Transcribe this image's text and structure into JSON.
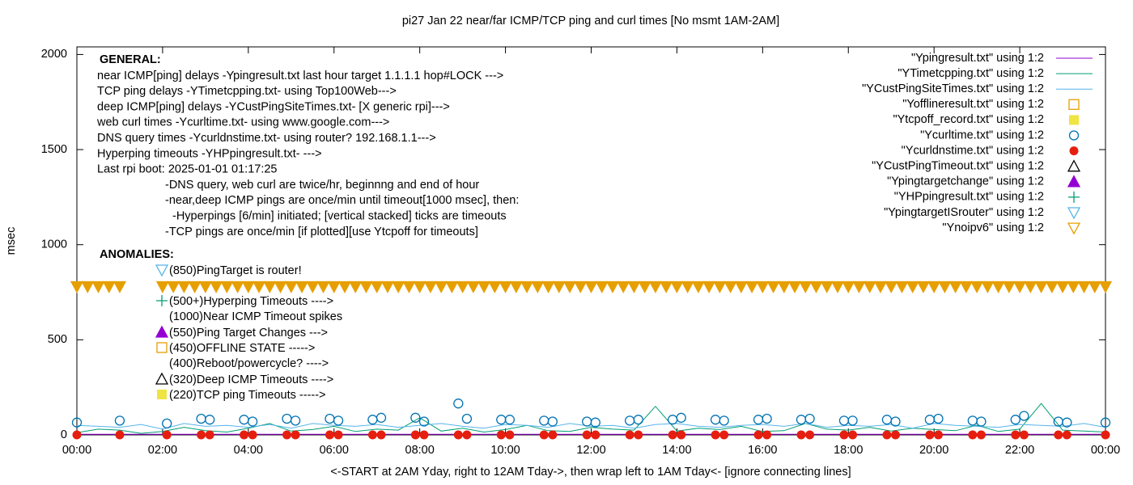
{
  "chart_data": {
    "type": "mixed",
    "title": "pi27 Jan 22  near/far ICMP/TCP ping and curl times [No msmt 1AM-2AM]",
    "x_label": "<-START at 2AM Yday, right to 12AM Tday->, then wrap left to 1AM Tday<- [ignore connecting lines]",
    "y_label": "msec",
    "xlim": [
      0,
      24
    ],
    "xticks": [
      {
        "value": 0,
        "label": "00:00"
      },
      {
        "value": 2,
        "label": "02:00"
      },
      {
        "value": 4,
        "label": "04:00"
      },
      {
        "value": 6,
        "label": "06:00"
      },
      {
        "value": 8,
        "label": "08:00"
      },
      {
        "value": 10,
        "label": "10:00"
      },
      {
        "value": 12,
        "label": "12:00"
      },
      {
        "value": 14,
        "label": "14:00"
      },
      {
        "value": 16,
        "label": "16:00"
      },
      {
        "value": 18,
        "label": "18:00"
      },
      {
        "value": 20,
        "label": "20:00"
      },
      {
        "value": 22,
        "label": "22:00"
      },
      {
        "value": 24,
        "label": "00:00"
      }
    ],
    "ylim": [
      0,
      2040
    ],
    "yticks": [
      0,
      500,
      1000,
      1500,
      2000
    ],
    "grid": false,
    "legend": "top-right",
    "general_heading": "GENERAL:",
    "general": [
      "near ICMP[ping] delays -Ypingresult.txt last hour target 1.1.1.1 hop#LOCK --->",
      "TCP ping delays -YTimetcpping.txt- using Top100Web--->",
      "deep ICMP[ping] delays -YCustPingSiteTimes.txt- [X generic rpi]--->",
      "web curl times -Ycurltime.txt- using www.google.com--->",
      "DNS query times -Ycurldnstime.txt- using router? 192.168.1.1--->",
      "Hyperping timeouts -YHPpingresult.txt- --->",
      "Last rpi boot: 2025-01-01 01:17:25",
      "-DNS query, web curl are twice/hr, beginnng and end of hour",
      "-near,deep ICMP pings are once/min until timeout[1000 msec], then:",
      "-Hyperpings [6/min] initiated; [vertical stacked] ticks are timeouts",
      "-TCP pings are once/min [if plotted][use Ytcpoff for timeouts]"
    ],
    "anomalies_heading": "ANOMALIES:",
    "anomalies": [
      {
        "label": "(850)PingTarget is router!",
        "marker": "triangle-down-open",
        "color": "#56b4e9"
      },
      {
        "label": "(500+)Hyperping Timeouts ---->",
        "marker": "plus",
        "color": "#009e73"
      },
      {
        "label": "(1000)Near ICMP Timeout spikes",
        "marker": "none",
        "color": "#000000"
      },
      {
        "label": "(550)Ping Target Changes --->",
        "marker": "triangle-up-filled",
        "color": "#9400d3"
      },
      {
        "label": "(450)OFFLINE STATE ----->",
        "marker": "square-open",
        "color": "#e69f00"
      },
      {
        "label": "(400)Reboot/powercycle? ---->",
        "marker": "none",
        "color": "#000000"
      },
      {
        "label": "(320)Deep ICMP Timeouts ---->",
        "marker": "triangle-up-open",
        "color": "#000000"
      },
      {
        "label": "(220)TCP ping Timeouts ----->",
        "marker": "square-filled",
        "color": "#f0e442"
      }
    ],
    "series": [
      {
        "name": "\"Ypingresult.txt\" using 1:2",
        "style": "line",
        "color": "#9400d3",
        "x": [
          0,
          2,
          4,
          6,
          8,
          10,
          12,
          14,
          16,
          18,
          20,
          22,
          24
        ],
        "values": [
          3,
          3,
          3,
          3,
          3,
          3,
          3,
          3,
          3,
          3,
          3,
          3,
          3
        ]
      },
      {
        "name": "\"YTimetcpping.txt\" using 1:2",
        "style": "line",
        "color": "#009e73",
        "x": [
          0,
          0.5,
          1,
          1.5,
          2,
          2.5,
          3,
          3.5,
          4,
          4.5,
          5,
          5.5,
          6,
          6.5,
          7,
          7.5,
          8,
          8.5,
          9,
          9.5,
          10,
          10.5,
          11,
          11.5,
          12,
          12.5,
          13,
          13.5,
          14,
          14.5,
          15,
          15.5,
          16,
          16.5,
          17,
          17.5,
          18,
          18.5,
          19,
          19.5,
          20,
          20.5,
          21,
          21.5,
          22,
          22.5,
          23,
          23.5,
          24
        ],
        "values": [
          12,
          30,
          25,
          8,
          18,
          40,
          22,
          15,
          35,
          60,
          20,
          28,
          45,
          18,
          30,
          25,
          90,
          20,
          35,
          15,
          28,
          50,
          22,
          18,
          40,
          30,
          25,
          150,
          20,
          35,
          28,
          45,
          18,
          22,
          60,
          30,
          25,
          40,
          20,
          35,
          28,
          22,
          50,
          18,
          30,
          165,
          25,
          20,
          15
        ]
      },
      {
        "name": "\"YCustPingSiteTimes.txt\" using 1:2",
        "style": "line",
        "color": "#56b4e9",
        "x": [
          0,
          0.5,
          1,
          1.5,
          2,
          2.5,
          3,
          3.5,
          4,
          4.5,
          5,
          5.5,
          6,
          6.5,
          7,
          7.5,
          8,
          8.5,
          9,
          9.5,
          10,
          10.5,
          11,
          11.5,
          12,
          12.5,
          13,
          13.5,
          14,
          14.5,
          15,
          15.5,
          16,
          16.5,
          17,
          17.5,
          18,
          18.5,
          19,
          19.5,
          20,
          20.5,
          21,
          21.5,
          22,
          22.5,
          23,
          23.5,
          24
        ],
        "values": [
          50,
          45,
          40,
          55,
          30,
          60,
          45,
          50,
          40,
          55,
          35,
          60,
          50,
          45,
          55,
          40,
          50,
          60,
          45,
          35,
          55,
          50,
          40,
          60,
          45,
          50,
          35,
          55,
          60,
          45,
          40,
          50,
          55,
          45,
          60,
          40,
          50,
          45,
          55,
          35,
          60,
          50,
          45,
          40,
          55,
          50,
          45,
          60,
          40
        ]
      },
      {
        "name": "\"Yofflineresult.txt\" using 1:2",
        "style": "square-open",
        "color": "#e69f00",
        "x": [],
        "values": []
      },
      {
        "name": "\"Ytcpoff_record.txt\" using 1:2",
        "style": "square-filled",
        "color": "#f0e442",
        "x": [],
        "values": []
      },
      {
        "name": "\"Ycurltime.txt\" using 1:2",
        "style": "circle-open",
        "color": "#0072b2",
        "x": [
          0,
          1,
          2.1,
          2.9,
          3.1,
          3.9,
          4.1,
          4.9,
          5.1,
          5.9,
          6.1,
          6.9,
          7.1,
          7.9,
          8.1,
          8.9,
          9.1,
          9.9,
          10.1,
          10.9,
          11.1,
          11.9,
          12.1,
          12.9,
          13.1,
          13.9,
          14.1,
          14.9,
          15.1,
          15.9,
          16.1,
          16.9,
          17.1,
          17.9,
          18.1,
          18.9,
          19.1,
          19.9,
          20.1,
          20.9,
          21.1,
          21.9,
          22.1,
          22.9,
          23.1,
          24
        ],
        "values": [
          65,
          75,
          60,
          85,
          80,
          80,
          70,
          85,
          75,
          85,
          75,
          80,
          90,
          90,
          70,
          165,
          85,
          80,
          80,
          75,
          70,
          70,
          65,
          75,
          80,
          80,
          90,
          80,
          75,
          80,
          85,
          80,
          85,
          75,
          75,
          80,
          70,
          80,
          85,
          75,
          70,
          80,
          100,
          70,
          65,
          65
        ]
      },
      {
        "name": "\"Ycurldnstime.txt\" using 1:2",
        "style": "circle-filled",
        "color": "#e51e10",
        "x": [
          0,
          1,
          2.1,
          2.9,
          3.1,
          3.9,
          4.1,
          4.9,
          5.1,
          5.9,
          6.1,
          6.9,
          7.1,
          7.9,
          8.1,
          8.9,
          9.1,
          9.9,
          10.1,
          10.9,
          11.1,
          11.9,
          12.1,
          12.9,
          13.1,
          13.9,
          14.1,
          14.9,
          15.1,
          15.9,
          16.1,
          16.9,
          17.1,
          17.9,
          18.1,
          18.9,
          19.1,
          19.9,
          20.1,
          20.9,
          21.1,
          21.9,
          22.1,
          22.9,
          23.1,
          24
        ],
        "values": [
          0,
          0,
          0,
          0,
          0,
          0,
          0,
          0,
          0,
          0,
          0,
          0,
          0,
          0,
          0,
          0,
          0,
          0,
          0,
          0,
          0,
          0,
          0,
          0,
          0,
          0,
          0,
          0,
          0,
          0,
          0,
          0,
          0,
          0,
          0,
          0,
          0,
          0,
          0,
          0,
          0,
          0,
          0,
          0,
          0,
          0
        ]
      },
      {
        "name": "\"YCustPingTimeout.txt\" using 1:2",
        "style": "triangle-up-open",
        "color": "#000000",
        "x": [],
        "values": []
      },
      {
        "name": "\"Ypingtargetchange\" using 1:2",
        "style": "triangle-up-filled",
        "color": "#9400d3",
        "x": [],
        "values": []
      },
      {
        "name": "\"YHPpingresult.txt\" using 1:2",
        "style": "plus",
        "color": "#009e73",
        "x": [],
        "values": []
      },
      {
        "name": "\"YpingtargetISrouter\" using 1:2",
        "style": "triangle-down-open",
        "color": "#56b4e9",
        "x": [],
        "values": []
      },
      {
        "name": "\"Ynoipv6\" using 1:2",
        "style": "triangle-down-open",
        "color": "#e69f00",
        "x": [
          0,
          0.25,
          0.5,
          0.75,
          1,
          2,
          2.25,
          2.5,
          2.75,
          3,
          3.25,
          3.5,
          3.75,
          4,
          4.25,
          4.5,
          4.75,
          5,
          5.25,
          5.5,
          5.75,
          6,
          6.25,
          6.5,
          6.75,
          7,
          7.25,
          7.5,
          7.75,
          8,
          8.25,
          8.5,
          8.75,
          9,
          9.25,
          9.5,
          9.75,
          10,
          10.25,
          10.5,
          10.75,
          11,
          11.25,
          11.5,
          11.75,
          12,
          12.25,
          12.5,
          12.75,
          13,
          13.25,
          13.5,
          13.75,
          14,
          14.25,
          14.5,
          14.75,
          15,
          15.25,
          15.5,
          15.75,
          16,
          16.25,
          16.5,
          16.75,
          17,
          17.25,
          17.5,
          17.75,
          18,
          18.25,
          18.5,
          18.75,
          19,
          19.25,
          19.5,
          19.75,
          20,
          20.25,
          20.5,
          20.75,
          21,
          21.25,
          21.5,
          21.75,
          22,
          22.25,
          22.5,
          22.75,
          23,
          23.25,
          23.5,
          23.75,
          24
        ],
        "values": [
          780,
          780,
          780,
          780,
          780,
          780,
          780,
          780,
          780,
          780,
          780,
          780,
          780,
          780,
          780,
          780,
          780,
          780,
          780,
          780,
          780,
          780,
          780,
          780,
          780,
          780,
          780,
          780,
          780,
          780,
          780,
          780,
          780,
          780,
          780,
          780,
          780,
          780,
          780,
          780,
          780,
          780,
          780,
          780,
          780,
          780,
          780,
          780,
          780,
          780,
          780,
          780,
          780,
          780,
          780,
          780,
          780,
          780,
          780,
          780,
          780,
          780,
          780,
          780,
          780,
          780,
          780,
          780,
          780,
          780,
          780,
          780,
          780,
          780,
          780,
          780,
          780,
          780,
          780,
          780,
          780,
          780,
          780,
          780,
          780,
          780,
          780,
          780,
          780,
          780,
          780,
          780,
          780,
          780
        ]
      }
    ]
  }
}
